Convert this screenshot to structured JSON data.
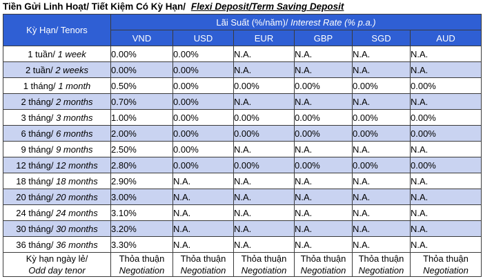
{
  "title": {
    "vn": "Tiền Gửi Linh Hoạt/ Tiết Kiệm Có Kỳ Hạn/",
    "en": "Flexi Deposit/Term Saving Deposit"
  },
  "table": {
    "tenor_header": "Kỳ Hạn/ Tenors",
    "rate_header_vn": "Lãi Suất (%/năm)/",
    "rate_header_en": "Interest Rate (% p.a.)",
    "currencies": [
      "VND",
      "USD",
      "EUR",
      "GBP",
      "SGD",
      "AUD"
    ],
    "rows": [
      {
        "vn": "1 tuần/",
        "en": "1 week",
        "values": [
          "0.00%",
          "0.00%",
          "N.A.",
          "N.A.",
          "N.A.",
          "N.A."
        ]
      },
      {
        "vn": "2 tuần/",
        "en": "2 weeks",
        "values": [
          "0.00%",
          "0.00%",
          "N.A.",
          "N.A.",
          "N.A.",
          "N.A."
        ]
      },
      {
        "vn": "1 tháng/",
        "en": "1 month",
        "values": [
          "0.50%",
          "0.00%",
          "0.00%",
          "0.00%",
          "0.00%",
          "0.00%"
        ]
      },
      {
        "vn": "2 tháng/",
        "en": "2 months",
        "values": [
          "0.70%",
          "0.00%",
          "N.A.",
          "N.A.",
          "N.A.",
          "N.A."
        ]
      },
      {
        "vn": "3 tháng/",
        "en": "3 months",
        "values": [
          "1.00%",
          "0.00%",
          "0.00%",
          "0.00%",
          "0.00%",
          "0.00%"
        ]
      },
      {
        "vn": "6 tháng/",
        "en": "6 months",
        "values": [
          "2.00%",
          "0.00%",
          "0.00%",
          "0.00%",
          "0.00%",
          "0.00%"
        ]
      },
      {
        "vn": "9 tháng/",
        "en": "9 months",
        "values": [
          "2.50%",
          "0.00%",
          "N.A.",
          "N.A.",
          "N.A.",
          "N.A."
        ]
      },
      {
        "vn": "12 tháng/",
        "en": "12 months",
        "values": [
          "2.80%",
          "0.00%",
          "0.00%",
          "0.00%",
          "0.00%",
          "0.00%"
        ]
      },
      {
        "vn": "18 tháng/",
        "en": "18 months",
        "values": [
          "2.90%",
          "N.A.",
          "N.A.",
          "N.A.",
          "N.A.",
          "N.A."
        ]
      },
      {
        "vn": "20 tháng/",
        "en": "20 months",
        "values": [
          "3.00%",
          "N.A.",
          "N.A.",
          "N.A.",
          "N.A.",
          "N.A."
        ]
      },
      {
        "vn": "24 tháng/",
        "en": "24 months",
        "values": [
          "3.10%",
          "N.A.",
          "N.A.",
          "N.A.",
          "N.A.",
          "N.A."
        ]
      },
      {
        "vn": "30 tháng/",
        "en": "30 months",
        "values": [
          "3.20%",
          "N.A.",
          "N.A.",
          "N.A.",
          "N.A.",
          "N.A."
        ]
      },
      {
        "vn": "36 tháng/",
        "en": "36 months",
        "values": [
          "3.30%",
          "N.A.",
          "N.A.",
          "N.A.",
          "N.A.",
          "N.A."
        ]
      }
    ],
    "odd_day": {
      "vn": "Kỳ hạn ngày lẻ/",
      "en": "Odd day tenor",
      "value_vn": "Thỏa thuận",
      "value_en": "Negotiation"
    }
  },
  "colors": {
    "header_bg": "#2f5fd4",
    "shade_bg": "#c9d3f1"
  }
}
